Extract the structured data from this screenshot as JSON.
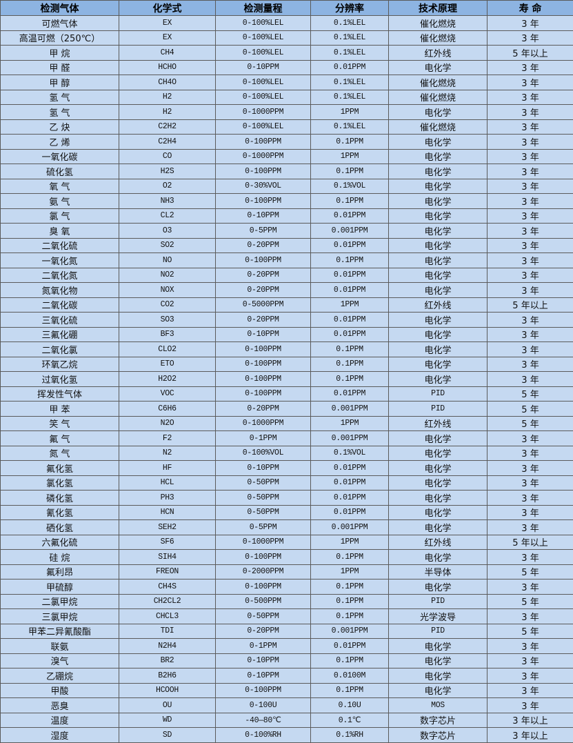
{
  "table": {
    "headers": [
      "检测气体",
      "化学式",
      "检测量程",
      "分辨率",
      "技术原理",
      "寿 命"
    ],
    "rows": [
      [
        "可燃气体",
        "EX",
        "0-100%LEL",
        "0.1%LEL",
        "催化燃烧",
        "3 年"
      ],
      [
        "高温可燃（250℃）",
        "EX",
        "0-100%LEL",
        "0.1%LEL",
        "催化燃烧",
        "3 年"
      ],
      [
        "甲 烷",
        "CH4",
        "0-100%LEL",
        "0.1%LEL",
        "红外线",
        "5 年以上"
      ],
      [
        "甲 醛",
        "HCHO",
        "0-10PPM",
        "0.01PPM",
        "电化学",
        "3 年"
      ],
      [
        "甲 醇",
        "CH4O",
        "0-100%LEL",
        "0.1%LEL",
        "催化燃烧",
        "3 年"
      ],
      [
        "氢 气",
        "H2",
        "0-100%LEL",
        "0.1%LEL",
        "催化燃烧",
        "3 年"
      ],
      [
        "氢 气",
        "H2",
        "0-1000PPM",
        "1PPM",
        "电化学",
        "3 年"
      ],
      [
        "乙 炔",
        "C2H2",
        "0-100%LEL",
        "0.1%LEL",
        "催化燃烧",
        "3 年"
      ],
      [
        "乙 烯",
        "C2H4",
        "0-100PPM",
        "0.1PPM",
        "电化学",
        "3 年"
      ],
      [
        "一氧化碳",
        "CO",
        "0-1000PPM",
        "1PPM",
        "电化学",
        "3 年"
      ],
      [
        "硫化氢",
        "H2S",
        "0-100PPM",
        "0.1PPM",
        "电化学",
        "3 年"
      ],
      [
        "氧 气",
        "O2",
        "0-30%VOL",
        "0.1%VOL",
        "电化学",
        "3 年"
      ],
      [
        "氨 气",
        "NH3",
        "0-100PPM",
        "0.1PPM",
        "电化学",
        "3 年"
      ],
      [
        "氯 气",
        "CL2",
        "0-10PPM",
        "0.01PPM",
        "电化学",
        "3 年"
      ],
      [
        "臭 氧",
        "O3",
        "0-5PPM",
        "0.001PPM",
        "电化学",
        "3 年"
      ],
      [
        "二氧化硫",
        "SO2",
        "0-20PPM",
        "0.01PPM",
        "电化学",
        "3 年"
      ],
      [
        "一氧化氮",
        "NO",
        "0-100PPM",
        "0.1PPM",
        "电化学",
        "3 年"
      ],
      [
        "二氧化氮",
        "NO2",
        "0-20PPM",
        "0.01PPM",
        "电化学",
        "3 年"
      ],
      [
        "氮氧化物",
        "NOX",
        "0-20PPM",
        "0.01PPM",
        "电化学",
        "3 年"
      ],
      [
        "二氧化碳",
        "CO2",
        "0-5000PPM",
        "1PPM",
        "红外线",
        "5 年以上"
      ],
      [
        "三氧化硫",
        "SO3",
        "0-20PPM",
        "0.01PPM",
        "电化学",
        "3 年"
      ],
      [
        "三氟化硼",
        "BF3",
        "0-10PPM",
        "0.01PPM",
        "电化学",
        "3 年"
      ],
      [
        "二氧化氯",
        "CLO2",
        "0-100PPM",
        "0.1PPM",
        "电化学",
        "3 年"
      ],
      [
        "环氧乙烷",
        "ETO",
        "0-100PPM",
        "0.1PPM",
        "电化学",
        "3 年"
      ],
      [
        "过氧化氢",
        "H2O2",
        "0-100PPM",
        "0.1PPM",
        "电化学",
        "3 年"
      ],
      [
        "挥发性气体",
        "VOC",
        "0-100PPM",
        "0.01PPM",
        "PID",
        "5 年"
      ],
      [
        "甲 苯",
        "C6H6",
        "0-20PPM",
        "0.001PPM",
        "PID",
        "5 年"
      ],
      [
        "笑 气",
        "N2O",
        "0-1000PPM",
        "1PPM",
        "红外线",
        "5 年"
      ],
      [
        "氟 气",
        "F2",
        "0-1PPM",
        "0.001PPM",
        "电化学",
        "3 年"
      ],
      [
        "氮 气",
        "N2",
        "0-100%VOL",
        "0.1%VOL",
        "电化学",
        "3 年"
      ],
      [
        "氟化氢",
        "HF",
        "0-10PPM",
        "0.01PPM",
        "电化学",
        "3 年"
      ],
      [
        "氯化氢",
        "HCL",
        "0-50PPM",
        "0.01PPM",
        "电化学",
        "3 年"
      ],
      [
        "磷化氢",
        "PH3",
        "0-50PPM",
        "0.01PPM",
        "电化学",
        "3 年"
      ],
      [
        "氰化氢",
        "HCN",
        "0-50PPM",
        "0.01PPM",
        "电化学",
        "3 年"
      ],
      [
        "硒化氢",
        "SEH2",
        "0-5PPM",
        "0.001PPM",
        "电化学",
        "3 年"
      ],
      [
        "六氟化硫",
        "SF6",
        "0-1000PPM",
        "1PPM",
        "红外线",
        "5 年以上"
      ],
      [
        "硅 烷",
        "SIH4",
        "0-100PPM",
        "0.1PPM",
        "电化学",
        "3 年"
      ],
      [
        "氟利昂",
        "FREON",
        "0-2000PPM",
        "1PPM",
        "半导体",
        "5 年"
      ],
      [
        "甲硫醇",
        "CH4S",
        "0-100PPM",
        "0.1PPM",
        "电化学",
        "3 年"
      ],
      [
        "二氯甲烷",
        "CH2CL2",
        "0-500PPM",
        "0.1PPM",
        "PID",
        "5 年"
      ],
      [
        "三氯甲烷",
        "CHCL3",
        "0-50PPM",
        "0.1PPM",
        "光学波导",
        "3 年"
      ],
      [
        "甲苯二异氰酸酯",
        "TDI",
        "0-20PPM",
        "0.001PPM",
        "PID",
        "5 年"
      ],
      [
        "联氨",
        "N2H4",
        "0-1PPM",
        "0.01PPM",
        "电化学",
        "3 年"
      ],
      [
        "溴气",
        "BR2",
        "0-10PPM",
        "0.1PPM",
        "电化学",
        "3 年"
      ],
      [
        "乙硼烷",
        "B2H6",
        "0-10PPM",
        "0.0100M",
        "电化学",
        "3 年"
      ],
      [
        "甲酸",
        "HCOOH",
        "0-100PPM",
        "0.1PPM",
        "电化学",
        "3 年"
      ],
      [
        "恶臭",
        "OU",
        "0-100U",
        "0.10U",
        "MOS",
        "3 年"
      ],
      [
        "温度",
        "WD",
        "-40—80℃",
        "0.1℃",
        "数字芯片",
        "3 年以上"
      ],
      [
        "湿度",
        "SD",
        "0-100%RH",
        "0.1%RH",
        "数字芯片",
        "3 年以上"
      ]
    ]
  },
  "colors": {
    "header_bg": "#8db4e2",
    "row_bg": "#c5d9f1",
    "border": "#5a5a5a"
  }
}
